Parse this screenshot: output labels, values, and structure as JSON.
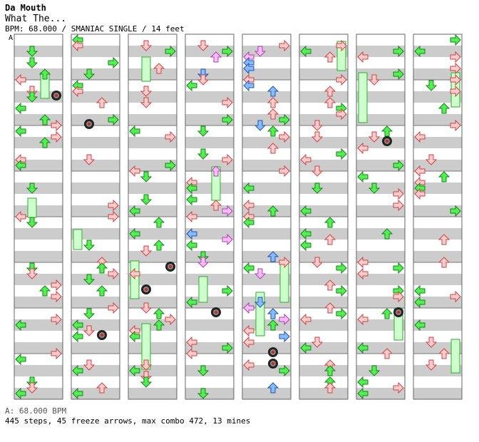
{
  "header": {
    "artist": "Da Mouth",
    "title": "What The...",
    "info": "BPM: 68.000 / SMANIAC SINGLE / 14 feet"
  },
  "marker": "A",
  "footer": {
    "bpm_change": "A: 68.000 BPM",
    "stats": "445 steps, 45 freeze arrows, max combo 472, 13 mines"
  },
  "colors": {
    "background": "#ffffff",
    "stripe": "#cccccc",
    "column_border": "#666666",
    "measure_line": "#777777",
    "red_arrow_fill": "#ffcccc",
    "red_arrow_stroke": "#cc4444",
    "green_arrow_fill": "#55ee55",
    "green_arrow_stroke": "#118811",
    "blue_arrow_fill": "#88bbff",
    "blue_arrow_stroke": "#2255aa",
    "pink_arrow_fill": "#ffbbff",
    "pink_arrow_stroke": "#aa44aa",
    "freeze_fill": "#ccffcc",
    "freeze_stroke": "#33aa33",
    "mine_fill": "#444444"
  }
}
